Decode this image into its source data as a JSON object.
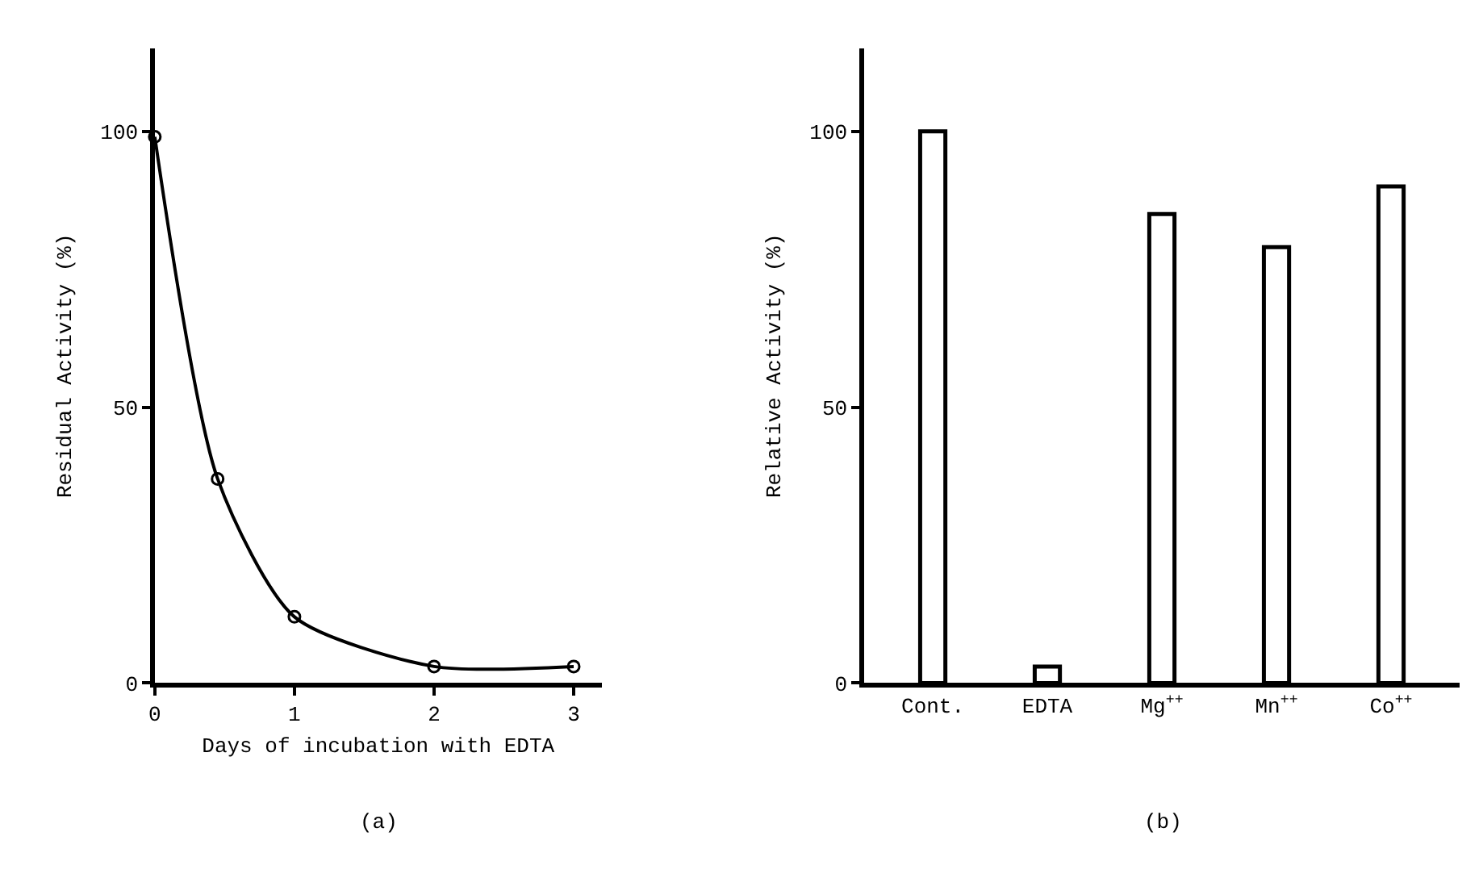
{
  "chart_data": [
    {
      "type": "line",
      "xlabel": "Days of incubation with EDTA",
      "ylabel": "Residual Activity (%)",
      "annotations": [
        "(a)"
      ],
      "x": [
        0,
        0.45,
        1,
        2,
        3
      ],
      "series": [
        {
          "color": "#000000",
          "values": [
            99,
            37,
            12,
            3,
            3
          ]
        }
      ],
      "xlim": [
        0,
        3.2
      ],
      "xticks": [
        0,
        1,
        2,
        3
      ],
      "ylim": [
        0,
        115
      ],
      "yticks": [
        0,
        50,
        100
      ],
      "marker": "circle",
      "line_style": "solid"
    },
    {
      "type": "bar",
      "ylabel": "Relative Activity (%)",
      "annotations": [
        "(b)"
      ],
      "categories": [
        "Cont.",
        "EDTA",
        "Mg$^{++}$",
        "Mn$^{++}$",
        "Co$^{++}$"
      ],
      "values": [
        100,
        3,
        85,
        79,
        90
      ],
      "color": "#ffffff",
      "ylim": [
        0,
        115
      ],
      "yticks": [
        0,
        50,
        100
      ]
    }
  ]
}
